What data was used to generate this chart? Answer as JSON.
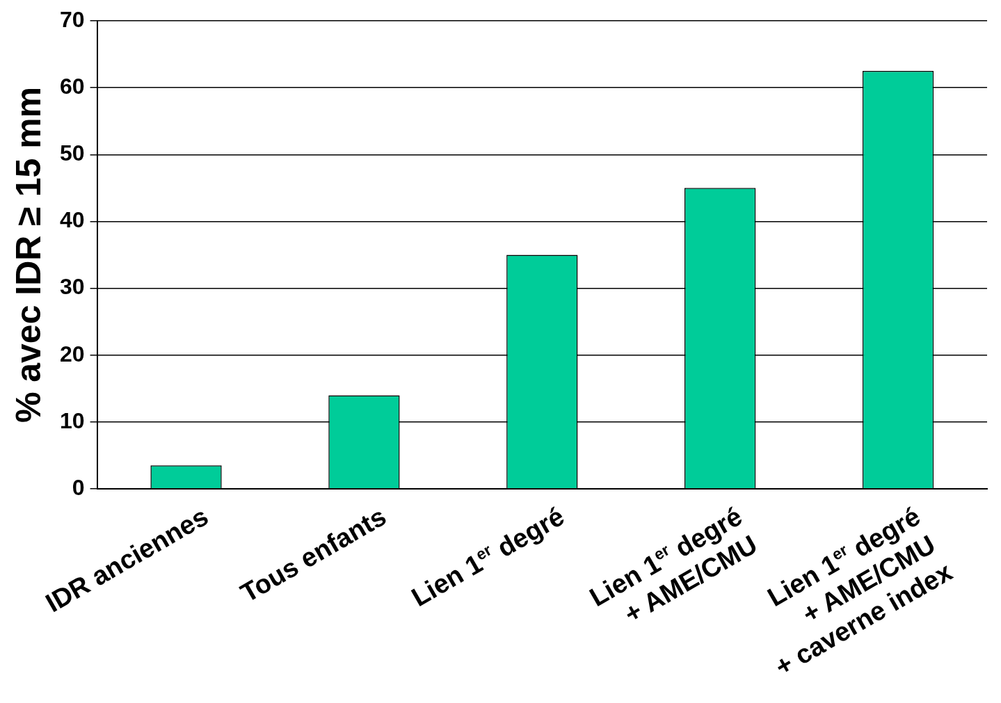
{
  "chart_data": {
    "type": "bar",
    "categories": [
      "IDR anciennes",
      "Tous enfants",
      "Lien 1$^{er}$ degré",
      "Lien 1$^{er}$ degré\n+ AME/CMU",
      "Lien 1$^{er}$ degré\n+ AME/CMU\n+ caverne index"
    ],
    "values": [
      3.5,
      14,
      35,
      45,
      62.5
    ],
    "color": "#00cc99",
    "ylabel": "% avec IDR ≥ 15 mm",
    "ylim": [
      0,
      70
    ],
    "yticks": [
      0,
      10,
      20,
      30,
      40,
      50,
      60,
      70
    ],
    "grid": "y"
  }
}
